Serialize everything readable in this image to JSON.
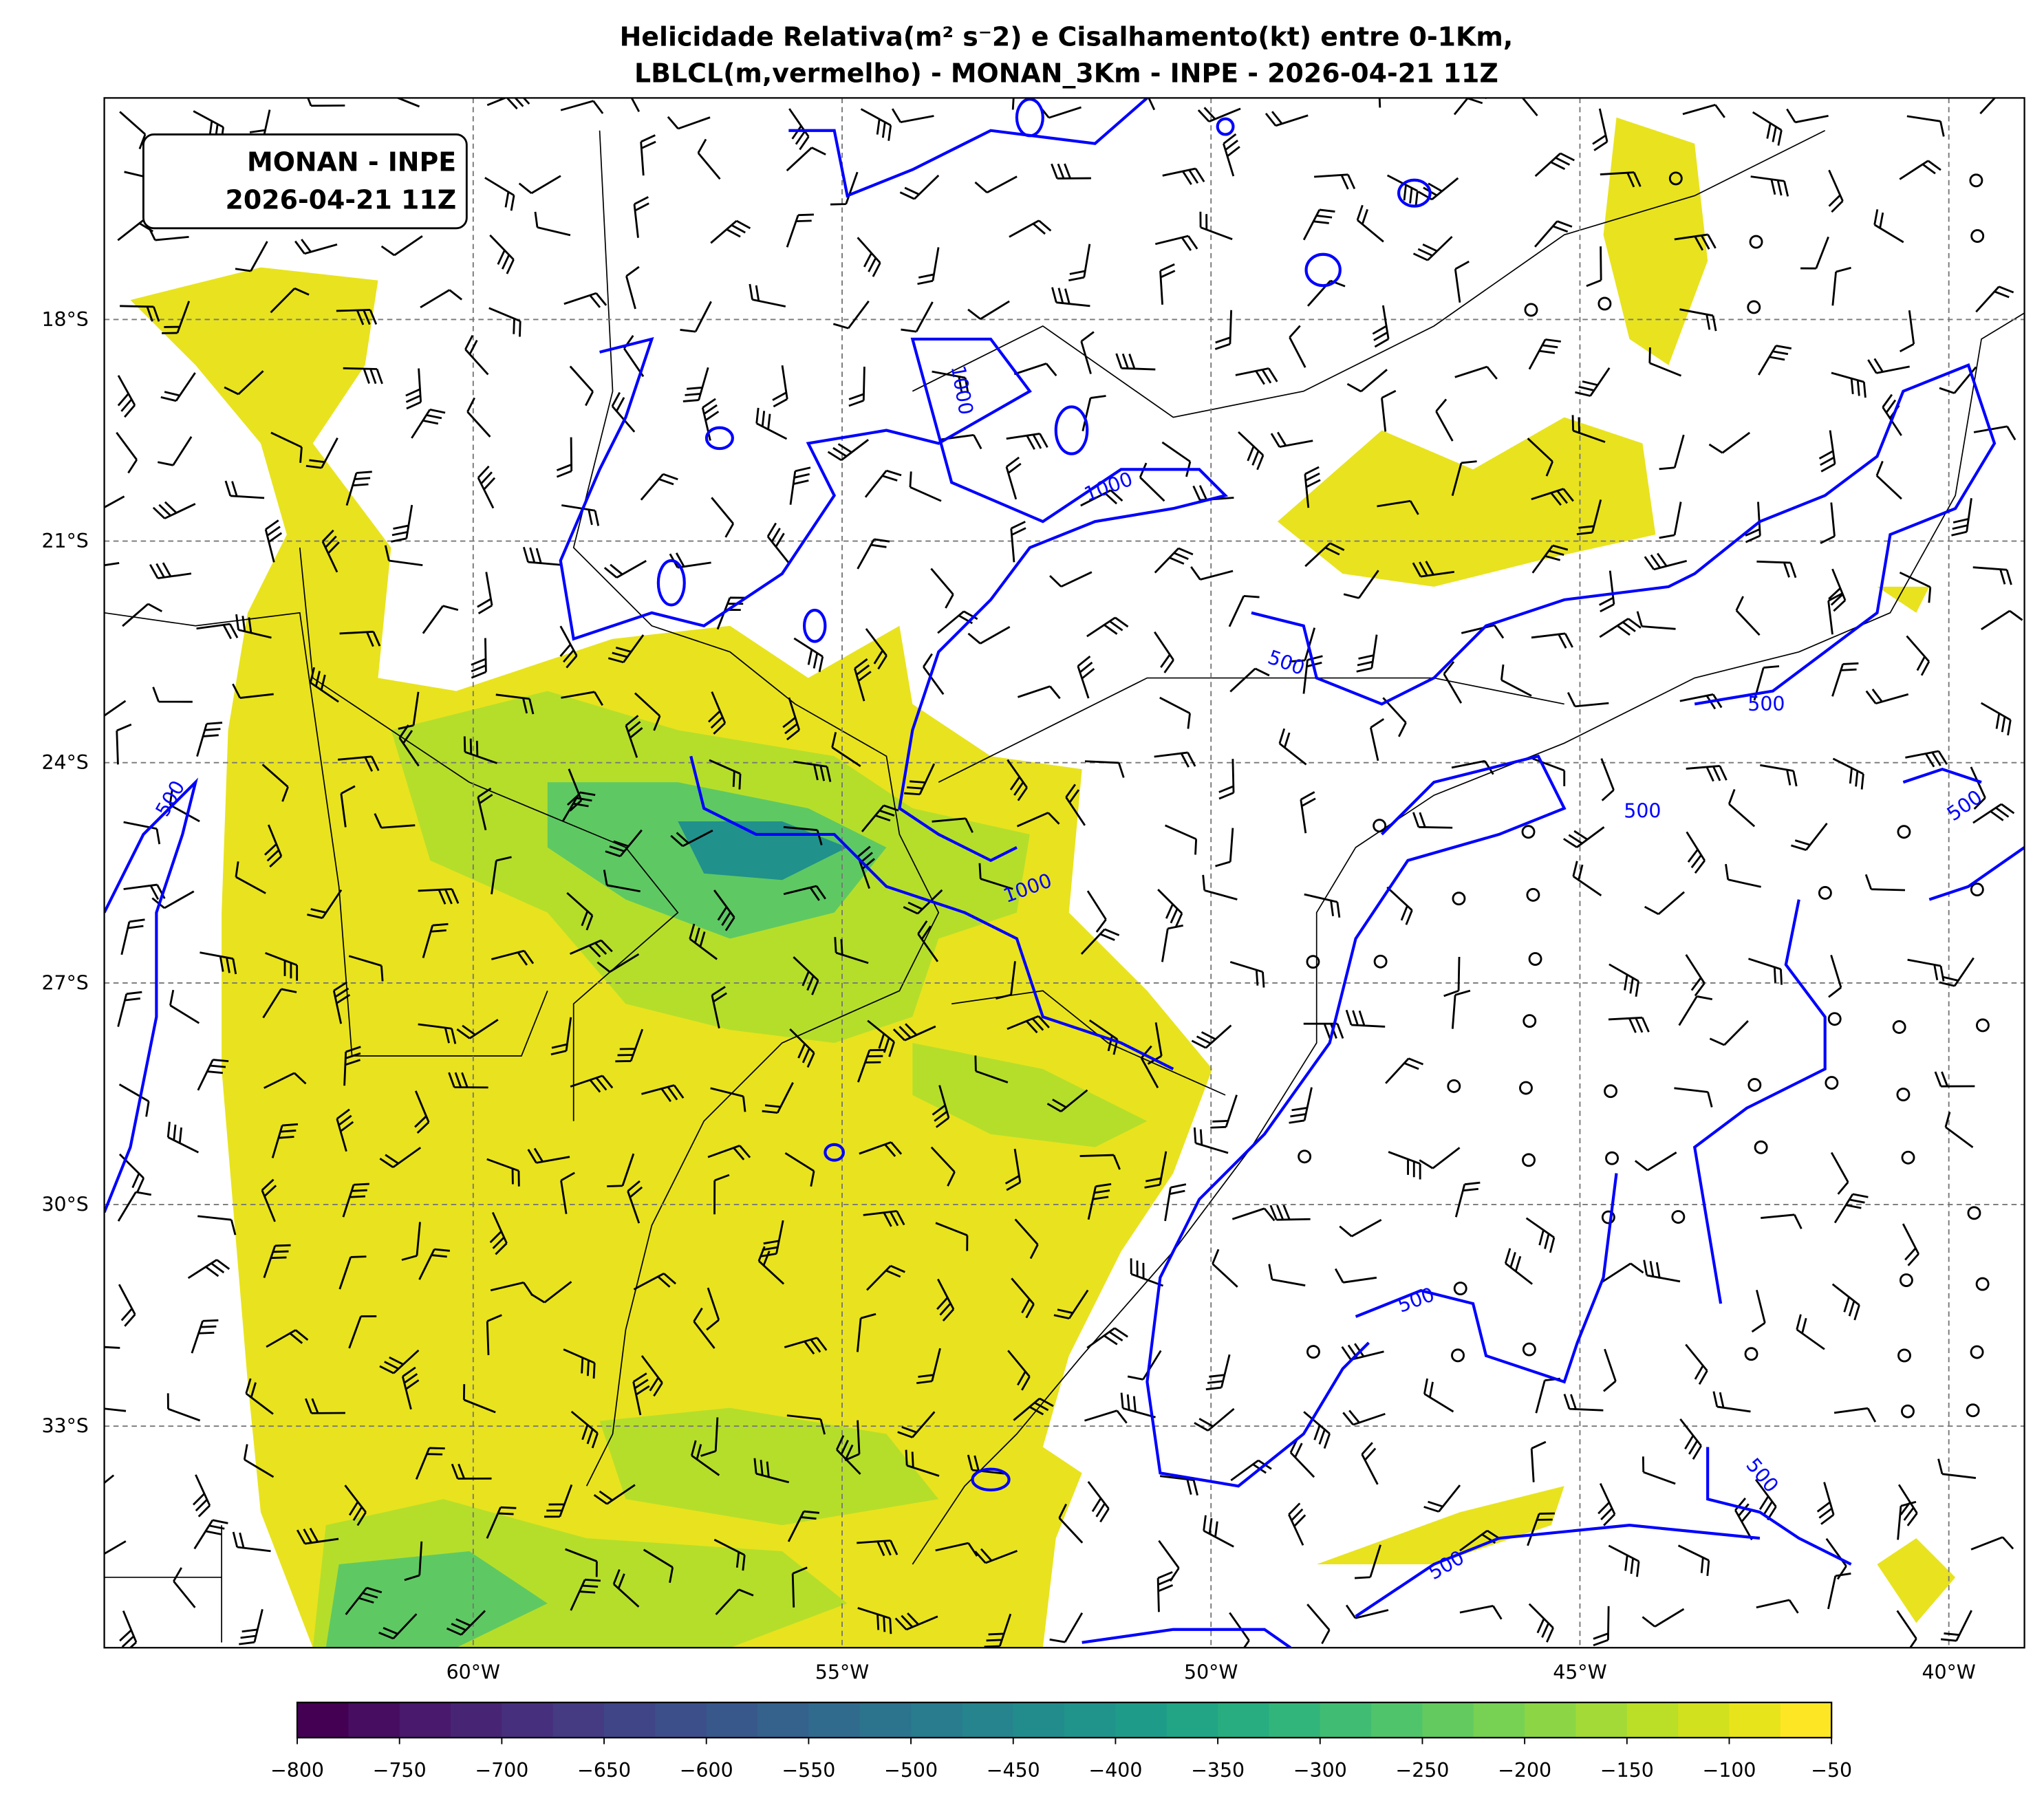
{
  "title": {
    "line1": "Helicidade Relativa(m² s⁻2) e Cisalhamento(kt) entre 0-1Km,",
    "line2": "LBLCL(m,vermelho) - MONAN_3Km - INPE - 2026-04-21 11Z"
  },
  "info_box": {
    "line1": "MONAN - INPE",
    "line2": "2026-04-21 11Z"
  },
  "map": {
    "extent_lon": [
      -65,
      -39
    ],
    "extent_lat": [
      -36,
      -15
    ],
    "lon_ticks": [
      "60°W",
      "55°W",
      "50°W",
      "45°W",
      "40°W"
    ],
    "lat_ticks": [
      "18°S",
      "21°S",
      "24°S",
      "27°S",
      "30°S",
      "33°S"
    ],
    "gridlines": true,
    "contour_color": "#0000ff",
    "contour_labels": [
      "1000",
      "1000",
      "1000",
      "500",
      "500",
      "500",
      "500",
      "500",
      "500",
      "500",
      "500"
    ]
  },
  "colorbar": {
    "colormap": "viridis",
    "range": [
      -800,
      -50
    ],
    "step": 25,
    "ticks": [
      "−800",
      "−750",
      "−700",
      "−650",
      "−600",
      "−550",
      "−500",
      "−450",
      "−400",
      "−350",
      "−300",
      "−250",
      "−200",
      "−150",
      "−100",
      "−50"
    ]
  }
}
